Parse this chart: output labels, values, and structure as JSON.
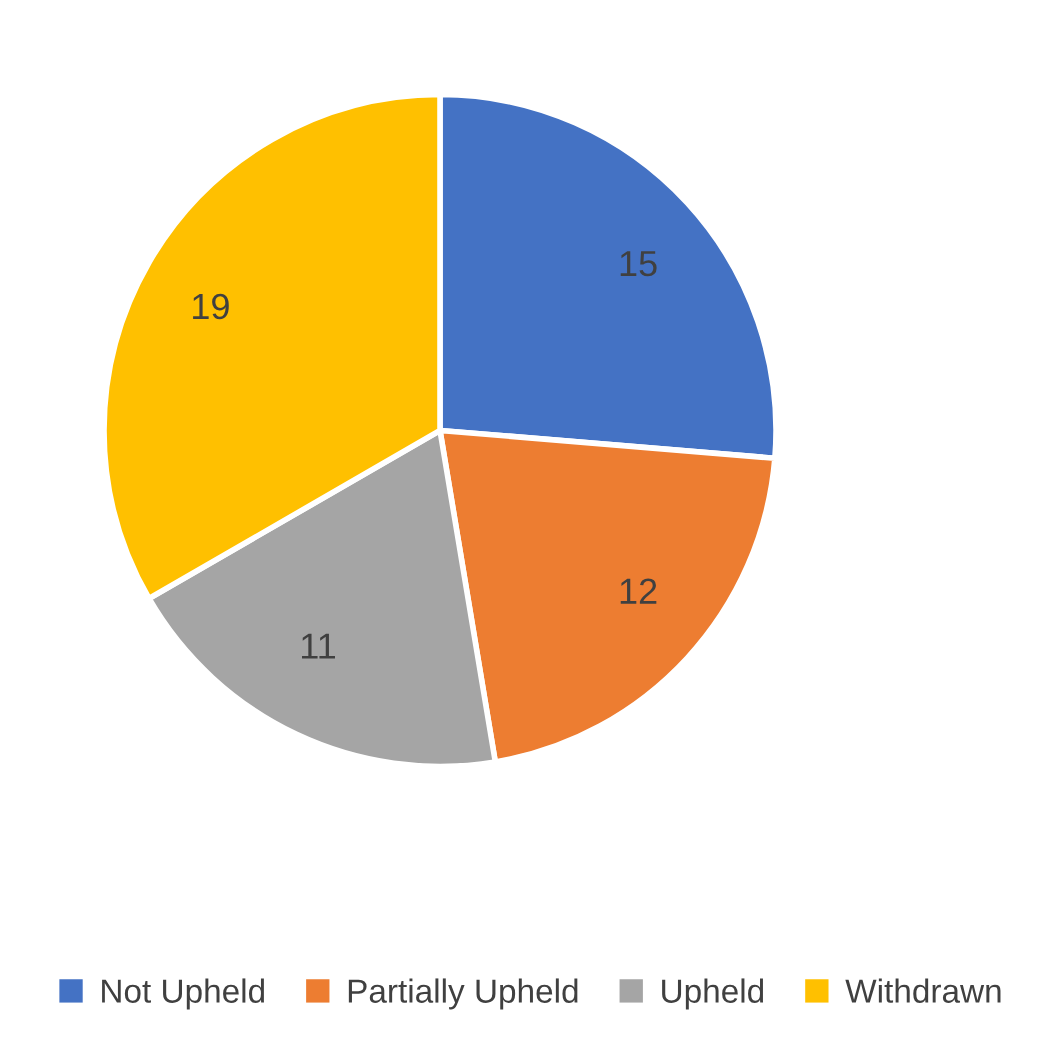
{
  "chart_data": {
    "type": "pie",
    "categories": [
      "Not Upheld",
      "Partially Upheld",
      "Upheld",
      "Withdrawn"
    ],
    "values": [
      15,
      12,
      11,
      19
    ],
    "colors": [
      "#4472c4",
      "#ed7d31",
      "#a5a5a5",
      "#ffc000"
    ],
    "data_labels": true,
    "legend": "bottom"
  }
}
